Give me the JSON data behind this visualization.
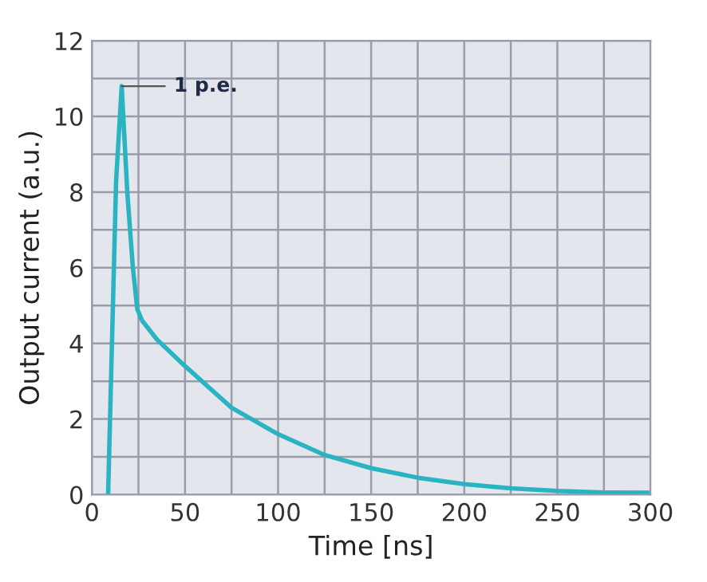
{
  "chart_data": {
    "type": "line",
    "xlabel": "Time [ns]",
    "ylabel": "Output current (a.u.)",
    "x": [
      8.7,
      13,
      16,
      19,
      22,
      24.4,
      27,
      35,
      50,
      75,
      100,
      125,
      150,
      175,
      200,
      225,
      250,
      275,
      300
    ],
    "series": [
      {
        "color": "#2ab3c0",
        "values": [
          0,
          8.3,
          10.8,
          8,
          6,
          4.9,
          4.6,
          4.1,
          3.4,
          2.3,
          1.6,
          1.05,
          0.7,
          0.45,
          0.28,
          0.17,
          0.1,
          0.06,
          0.05
        ]
      }
    ],
    "xlim": [
      0,
      300
    ],
    "ylim": [
      0,
      12
    ],
    "xticks": [
      0,
      {
        "value": 25,
        "label": null
      },
      50,
      {
        "value": 75,
        "label": null
      },
      100,
      {
        "value": 125,
        "label": null
      },
      150,
      {
        "value": 175,
        "label": null
      },
      200,
      {
        "value": 225,
        "label": null
      },
      250,
      {
        "value": 275,
        "label": null
      },
      300
    ],
    "yticks": [
      0,
      {
        "value": 1,
        "label": null
      },
      2,
      {
        "value": 3,
        "label": null
      },
      4,
      {
        "value": 5,
        "label": null
      },
      6,
      {
        "value": 7,
        "label": null
      },
      8,
      {
        "value": 9,
        "label": null
      },
      10,
      {
        "value": 11,
        "label": null
      },
      12
    ],
    "annotations": [
      {
        "text": "1 p.e.",
        "x": 16,
        "y": 10.8
      }
    ],
    "grid": true,
    "legend": false,
    "marker": "none",
    "line_style": "solid"
  }
}
